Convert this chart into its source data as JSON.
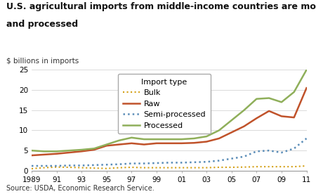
{
  "title_line1": "U.S. agricultural imports from middle-income countries are mostly raw",
  "title_line2": "and processed",
  "ylabel": "$ billions in imports",
  "source": "Source: USDA, Economic Research Service.",
  "legend_title": "Import type",
  "ylim": [
    0,
    25
  ],
  "yticks": [
    0,
    5,
    10,
    15,
    20,
    25
  ],
  "xtick_labels": [
    "1989",
    "91",
    "93",
    "95",
    "97",
    "99",
    "01",
    "03",
    "05",
    "07",
    "09",
    "11"
  ],
  "xtick_values": [
    1989,
    1991,
    1993,
    1995,
    1997,
    1999,
    2001,
    2003,
    2005,
    2007,
    2009,
    2011
  ],
  "series": {
    "Bulk": {
      "color": "#D4A017",
      "linestyle": "dotted",
      "linewidth": 1.5,
      "years": [
        1989,
        1990,
        1991,
        1992,
        1993,
        1994,
        1995,
        1996,
        1997,
        1998,
        1999,
        2000,
        2001,
        2002,
        2003,
        2004,
        2005,
        2006,
        2007,
        2008,
        2009,
        2010,
        2011
      ],
      "values": [
        0.5,
        0.75,
        0.9,
        0.85,
        0.75,
        0.65,
        0.55,
        0.75,
        0.85,
        0.75,
        0.75,
        0.75,
        0.75,
        0.75,
        0.75,
        0.85,
        0.85,
        0.9,
        1.0,
        1.0,
        1.0,
        1.0,
        1.2
      ]
    },
    "Raw": {
      "color": "#C0522A",
      "linestyle": "solid",
      "linewidth": 1.8,
      "years": [
        1989,
        1990,
        1991,
        1992,
        1993,
        1994,
        1995,
        1996,
        1997,
        1998,
        1999,
        2000,
        2001,
        2002,
        2003,
        2004,
        2005,
        2006,
        2007,
        2008,
        2009,
        2010,
        2011
      ],
      "values": [
        3.8,
        4.0,
        4.2,
        4.5,
        4.8,
        5.2,
        6.2,
        6.5,
        6.8,
        6.5,
        6.8,
        6.8,
        6.8,
        6.9,
        7.2,
        8.0,
        9.5,
        11.0,
        13.0,
        14.8,
        13.5,
        13.2,
        20.5
      ]
    },
    "Semi-processed": {
      "color": "#5B8DB8",
      "linestyle": "dotted",
      "linewidth": 1.8,
      "years": [
        1989,
        1990,
        1991,
        1992,
        1993,
        1994,
        1995,
        1996,
        1997,
        1998,
        1999,
        2000,
        2001,
        2002,
        2003,
        2004,
        2005,
        2006,
        2007,
        2008,
        2009,
        2010,
        2011
      ],
      "values": [
        1.2,
        1.2,
        1.2,
        1.3,
        1.3,
        1.4,
        1.5,
        1.6,
        1.8,
        1.8,
        1.9,
        2.0,
        2.0,
        2.1,
        2.2,
        2.5,
        3.0,
        3.5,
        4.8,
        5.0,
        4.5,
        5.5,
        8.0
      ]
    },
    "Processed": {
      "color": "#8FAF5A",
      "linestyle": "solid",
      "linewidth": 1.8,
      "years": [
        1989,
        1990,
        1991,
        1992,
        1993,
        1994,
        1995,
        1996,
        1997,
        1998,
        1999,
        2000,
        2001,
        2002,
        2003,
        2004,
        2005,
        2006,
        2007,
        2008,
        2009,
        2010,
        2011
      ],
      "values": [
        5.0,
        4.8,
        4.8,
        5.0,
        5.2,
        5.5,
        6.5,
        7.5,
        8.2,
        7.8,
        7.8,
        7.8,
        7.8,
        8.0,
        8.5,
        10.0,
        12.5,
        15.0,
        17.8,
        18.0,
        17.0,
        19.5,
        25.0
      ]
    }
  },
  "background_color": "#ffffff",
  "grid_color": "#cccccc",
  "title_fontsize": 9,
  "ylabel_fontsize": 7.5,
  "tick_fontsize": 7.5,
  "legend_fontsize": 8,
  "source_fontsize": 7
}
